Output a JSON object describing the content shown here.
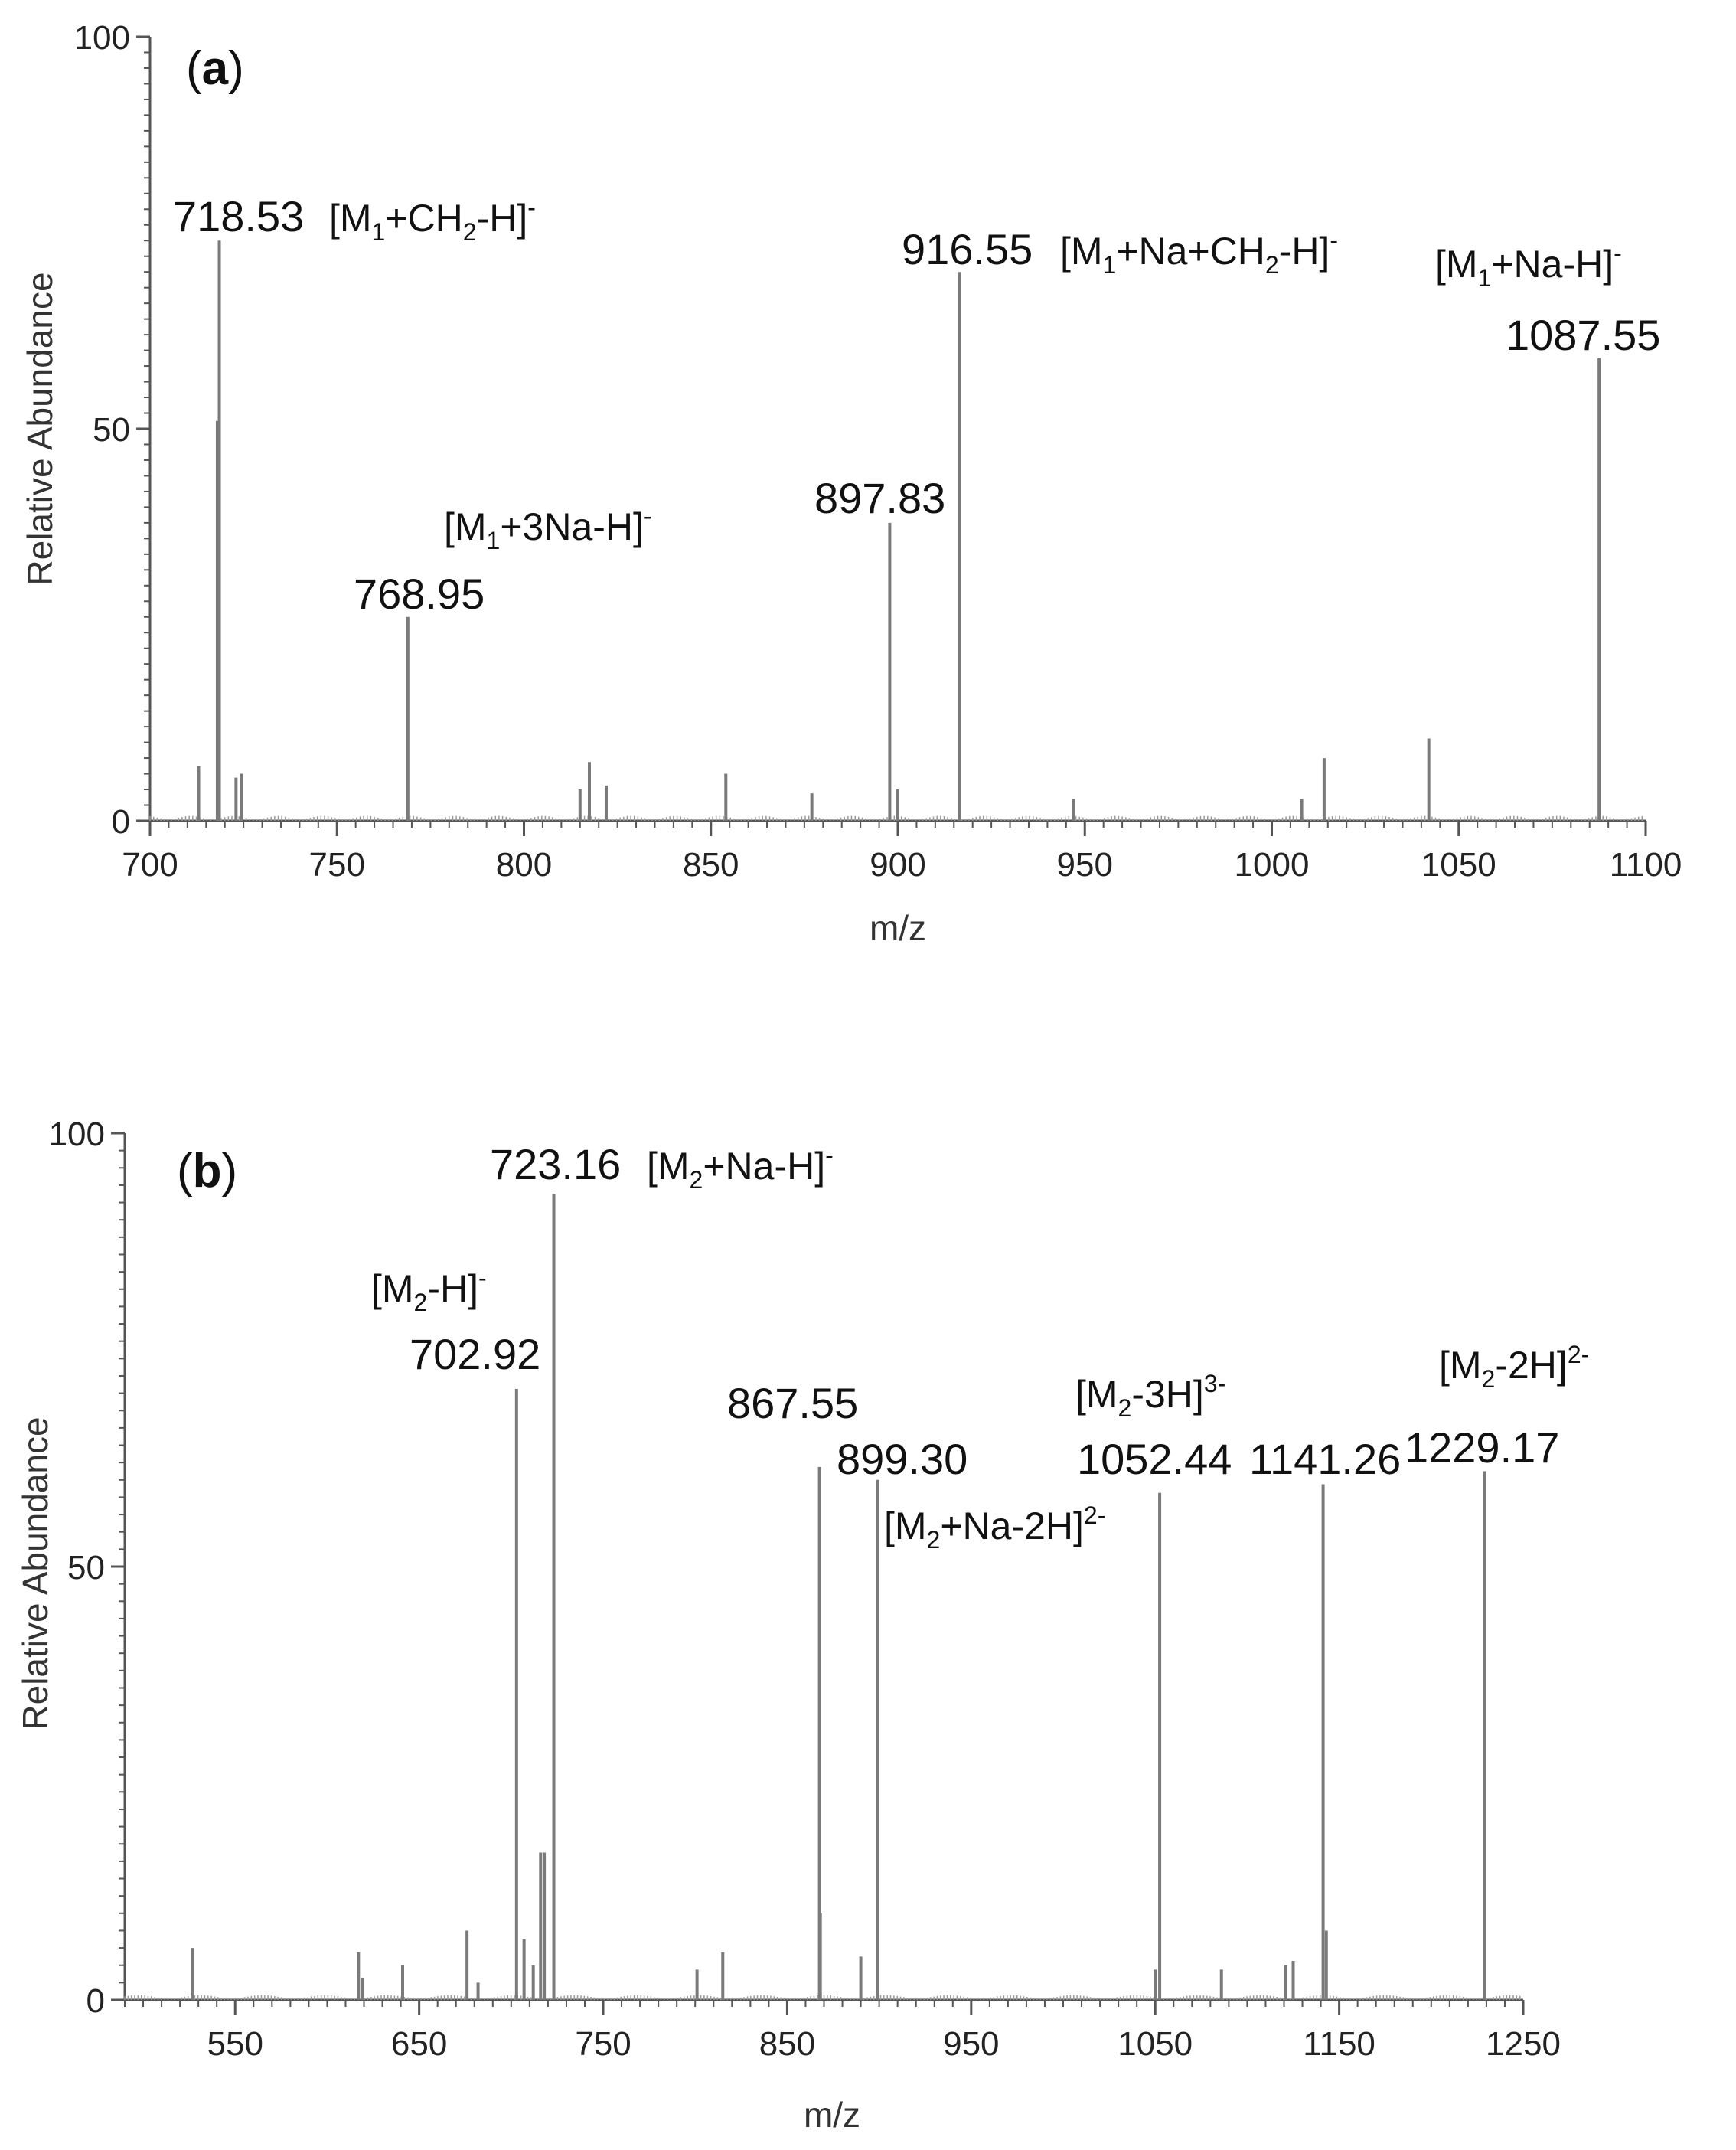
{
  "colors": {
    "axis": "#555555",
    "peak": "#7a7a7a",
    "text": "#111111"
  },
  "chart_data": [
    {
      "type": "bar",
      "panel_letter": "a",
      "xlabel": "m/z",
      "ylabel": "Relative Abundance",
      "xlim": [
        700,
        1100
      ],
      "ylim": [
        0,
        100
      ],
      "xticks": [
        700,
        750,
        800,
        850,
        900,
        950,
        1000,
        1050,
        1100
      ],
      "yticks": [
        0,
        50,
        100
      ],
      "peaks": [
        {
          "x": 713,
          "y": 7
        },
        {
          "x": 718.0,
          "y": 51
        },
        {
          "x": 718.53,
          "y": 74
        },
        {
          "x": 723,
          "y": 5.5
        },
        {
          "x": 724.5,
          "y": 6
        },
        {
          "x": 768.95,
          "y": 26
        },
        {
          "x": 815,
          "y": 4
        },
        {
          "x": 817.5,
          "y": 7.5
        },
        {
          "x": 822,
          "y": 4.5
        },
        {
          "x": 854,
          "y": 6
        },
        {
          "x": 877,
          "y": 3.5
        },
        {
          "x": 897.83,
          "y": 38
        },
        {
          "x": 900,
          "y": 4
        },
        {
          "x": 916.55,
          "y": 70
        },
        {
          "x": 947,
          "y": 2.8
        },
        {
          "x": 1008,
          "y": 2.8
        },
        {
          "x": 1014,
          "y": 8
        },
        {
          "x": 1042,
          "y": 10.5
        },
        {
          "x": 1087.55,
          "y": 59
        }
      ],
      "annotations": [
        {
          "value": "718.53",
          "ion": {
            "pre": "[M",
            "sub": "1",
            "mid": "+CH",
            "sub2": "2",
            "post": "-H]",
            "sup": "-"
          }
        },
        {
          "value": "768.95",
          "ion": {
            "pre": "[M",
            "sub": "1",
            "mid": "+3Na-H]",
            "sub2": "",
            "post": "",
            "sup": "-"
          }
        },
        {
          "value": "897.83",
          "ion": null
        },
        {
          "value": "916.55",
          "ion": {
            "pre": "[M",
            "sub": "1",
            "mid": "+Na+CH",
            "sub2": "2",
            "post": "-H]",
            "sup": "-"
          }
        },
        {
          "value": "1087.55",
          "ion": {
            "pre": "[M",
            "sub": "1",
            "mid": "+Na-H]",
            "sub2": "",
            "post": "",
            "sup": "-"
          }
        }
      ]
    },
    {
      "type": "bar",
      "panel_letter": "b",
      "xlabel": "m/z",
      "ylabel": "Relative Abundance",
      "xlim": [
        490,
        1250
      ],
      "ylim": [
        0,
        100
      ],
      "xticks": [
        550,
        650,
        750,
        850,
        950,
        1050,
        1150,
        1250
      ],
      "yticks": [
        0,
        50,
        100
      ],
      "peaks": [
        {
          "x": 527,
          "y": 6
        },
        {
          "x": 617,
          "y": 5.5
        },
        {
          "x": 619,
          "y": 2.5
        },
        {
          "x": 641,
          "y": 4
        },
        {
          "x": 676,
          "y": 8
        },
        {
          "x": 682,
          "y": 2
        },
        {
          "x": 702.92,
          "y": 70.5
        },
        {
          "x": 707,
          "y": 7
        },
        {
          "x": 712,
          "y": 4
        },
        {
          "x": 716,
          "y": 17
        },
        {
          "x": 718,
          "y": 17
        },
        {
          "x": 723.16,
          "y": 93
        },
        {
          "x": 801,
          "y": 3.5
        },
        {
          "x": 815,
          "y": 5.5
        },
        {
          "x": 867.55,
          "y": 61.5
        },
        {
          "x": 868,
          "y": 10
        },
        {
          "x": 890,
          "y": 5
        },
        {
          "x": 899.3,
          "y": 60
        },
        {
          "x": 1050,
          "y": 3.5
        },
        {
          "x": 1052.44,
          "y": 58.5
        },
        {
          "x": 1086,
          "y": 3.5
        },
        {
          "x": 1121,
          "y": 4
        },
        {
          "x": 1125,
          "y": 4.5
        },
        {
          "x": 1141.26,
          "y": 59.5
        },
        {
          "x": 1143,
          "y": 8
        },
        {
          "x": 1229.17,
          "y": 61
        }
      ],
      "annotations": [
        {
          "value": "702.92",
          "ion": {
            "pre": "[M",
            "sub": "2",
            "mid": "-H]",
            "sub2": "",
            "post": "",
            "sup": "-"
          }
        },
        {
          "value": "723.16",
          "ion": {
            "pre": "[M",
            "sub": "2",
            "mid": "+Na-H]",
            "sub2": "",
            "post": "",
            "sup": "-"
          }
        },
        {
          "value": "867.55",
          "ion": null
        },
        {
          "value": "899.30",
          "ion": {
            "pre": "[M",
            "sub": "2",
            "mid": "+Na-2H]",
            "sub2": "",
            "post": "",
            "sup": "2-"
          }
        },
        {
          "value": "1052.44",
          "ion": {
            "pre": "[M",
            "sub": "2",
            "mid": "-3H]",
            "sub2": "",
            "post": "",
            "sup": "3-"
          }
        },
        {
          "value": "1141.26",
          "ion": null
        },
        {
          "value": "1229.17",
          "ion": {
            "pre": "[M",
            "sub": "2",
            "mid": "-2H]",
            "sub2": "",
            "post": "",
            "sup": "2-"
          }
        }
      ]
    }
  ]
}
